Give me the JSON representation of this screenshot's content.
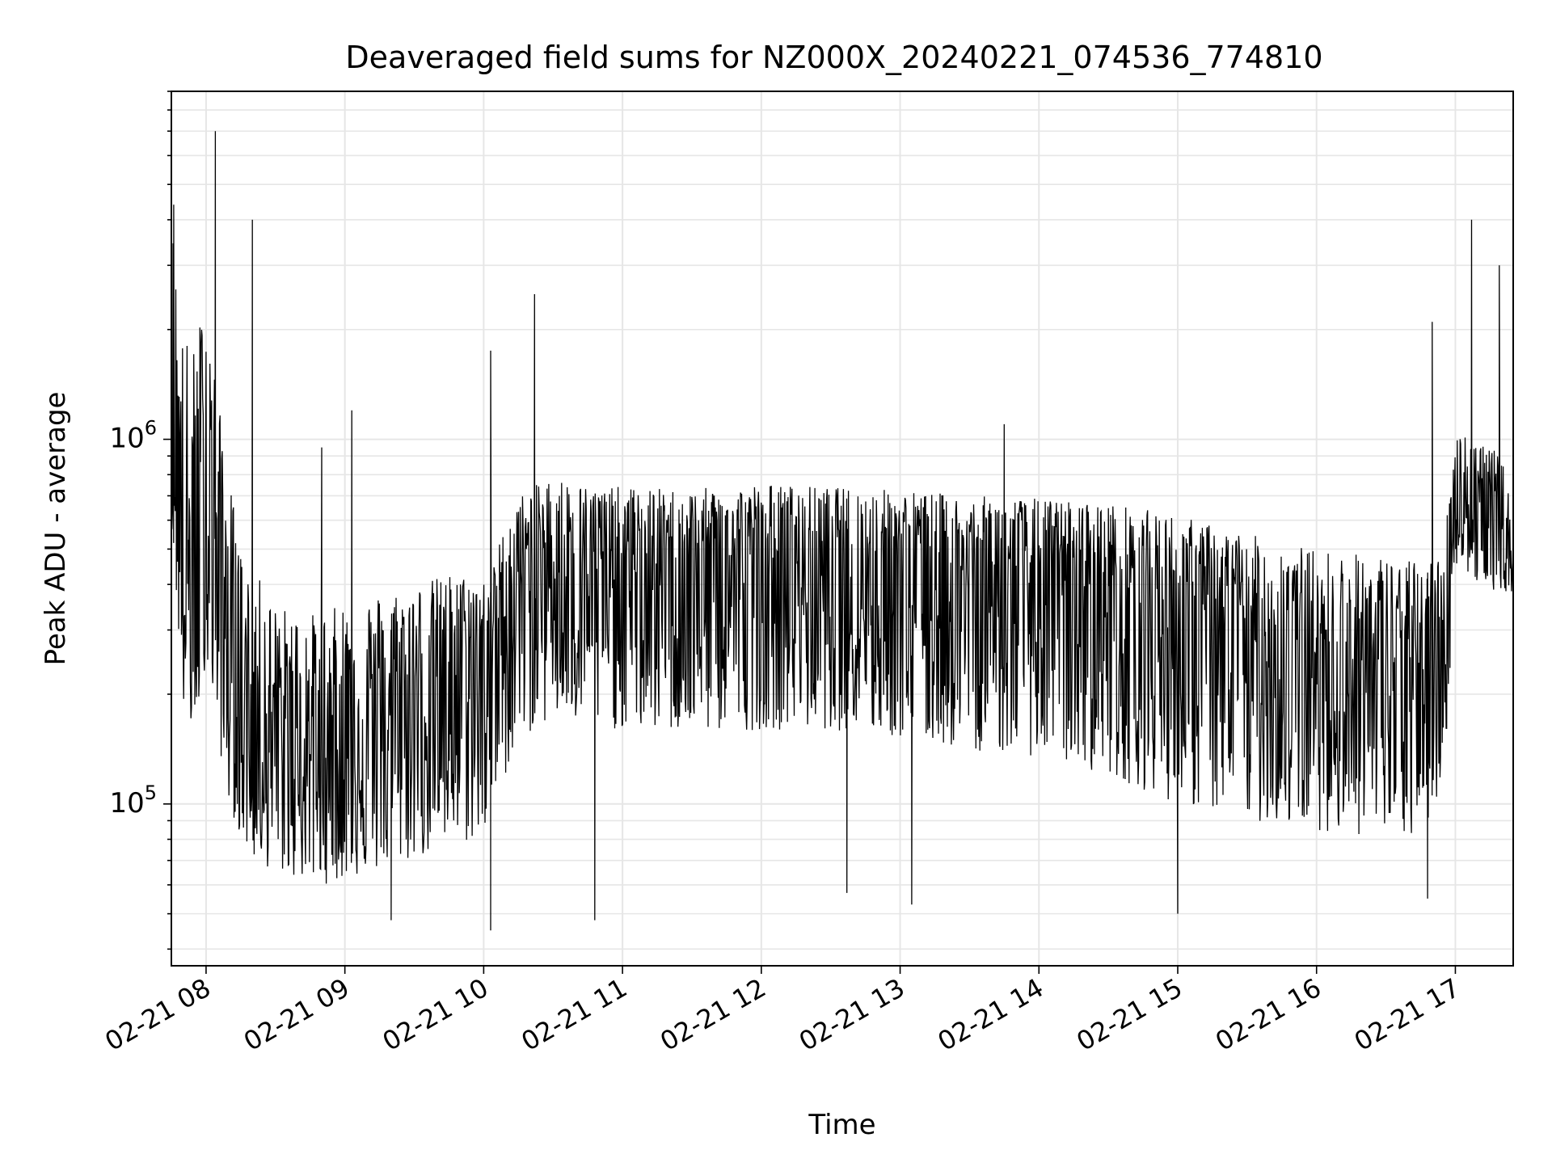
{
  "chart_data": {
    "type": "line",
    "title": "Deaveraged field sums for NZ000X_20240221_074536_774810",
    "xlabel": "Time",
    "ylabel": "Peak ADU - average",
    "yscale": "log",
    "ylim": [
      36000,
      9000000
    ],
    "xlim": [
      "2024-02-21 07:45",
      "2024-02-21 17:25"
    ],
    "x_ticks": [
      {
        "time": "2024-02-21 08:00",
        "label": "02-21 08"
      },
      {
        "time": "2024-02-21 09:00",
        "label": "02-21 09"
      },
      {
        "time": "2024-02-21 10:00",
        "label": "02-21 10"
      },
      {
        "time": "2024-02-21 11:00",
        "label": "02-21 11"
      },
      {
        "time": "2024-02-21 12:00",
        "label": "02-21 12"
      },
      {
        "time": "2024-02-21 13:00",
        "label": "02-21 13"
      },
      {
        "time": "2024-02-21 14:00",
        "label": "02-21 14"
      },
      {
        "time": "2024-02-21 15:00",
        "label": "02-21 15"
      },
      {
        "time": "2024-02-21 16:00",
        "label": "02-21 16"
      },
      {
        "time": "2024-02-21 17:00",
        "label": "02-21 17"
      }
    ],
    "y_ticks": [
      {
        "value": 100000,
        "base": "10",
        "exp": "5"
      },
      {
        "value": 1000000,
        "base": "10",
        "exp": "6"
      }
    ],
    "grid": true,
    "line_color": "#000000",
    "grid_color": "#e6e6e6",
    "series": [
      {
        "x": [
          "2024-02-21 07:45",
          "2024-02-21 07:50",
          "2024-02-21 07:55",
          "2024-02-21 08:00",
          "2024-02-21 08:05",
          "2024-02-21 08:10",
          "2024-02-21 08:15",
          "2024-02-21 08:20",
          "2024-02-21 08:30",
          "2024-02-21 08:40",
          "2024-02-21 08:50",
          "2024-02-21 09:00",
          "2024-02-21 09:15",
          "2024-02-21 09:30",
          "2024-02-21 09:45",
          "2024-02-21 10:00",
          "2024-02-21 10:15",
          "2024-02-21 10:30",
          "2024-02-21 10:45",
          "2024-02-21 11:00",
          "2024-02-21 11:30",
          "2024-02-21 12:00",
          "2024-02-21 12:30",
          "2024-02-21 13:00",
          "2024-02-21 13:30",
          "2024-02-21 14:00",
          "2024-02-21 14:30",
          "2024-02-21 15:00",
          "2024-02-21 15:30",
          "2024-02-21 16:00",
          "2024-02-21 16:30",
          "2024-02-21 16:45",
          "2024-02-21 16:55",
          "2024-02-21 17:00",
          "2024-02-21 17:10",
          "2024-02-21 17:20",
          "2024-02-21 17:25"
        ],
        "high": [
          4300000,
          2000000,
          1800000,
          2700000,
          1300000,
          800000,
          500000,
          450000,
          350000,
          340000,
          330000,
          360000,
          380000,
          400000,
          430000,
          420000,
          700000,
          800000,
          750000,
          740000,
          730000,
          760000,
          740000,
          730000,
          700000,
          690000,
          670000,
          620000,
          550000,
          500000,
          480000,
          460000,
          500000,
          1100000,
          1000000,
          900000,
          600000
        ],
        "center": [
          1200000,
          400000,
          300000,
          800000,
          450000,
          250000,
          180000,
          170000,
          150000,
          140000,
          140000,
          150000,
          170000,
          190000,
          220000,
          240000,
          420000,
          460000,
          440000,
          430000,
          430000,
          440000,
          430000,
          420000,
          400000,
          390000,
          370000,
          330000,
          280000,
          240000,
          220000,
          210000,
          300000,
          700000,
          620000,
          550000,
          480000
        ],
        "low": [
          600000,
          180000,
          150000,
          250000,
          150000,
          100000,
          80000,
          70000,
          65000,
          62000,
          60000,
          62000,
          65000,
          70000,
          75000,
          80000,
          150000,
          170000,
          160000,
          160000,
          155000,
          160000,
          160000,
          150000,
          140000,
          135000,
          120000,
          100000,
          90000,
          85000,
          80000,
          80000,
          110000,
          450000,
          400000,
          380000,
          380000
        ],
        "spikes": [
          {
            "time": "2024-02-21 07:46",
            "value": 4400000
          },
          {
            "time": "2024-02-21 08:04",
            "value": 7000000
          },
          {
            "time": "2024-02-21 08:20",
            "value": 4000000
          },
          {
            "time": "2024-02-21 08:50",
            "value": 950000
          },
          {
            "time": "2024-02-21 09:03",
            "value": 1200000
          },
          {
            "time": "2024-02-21 10:03",
            "value": 1750000
          },
          {
            "time": "2024-02-21 10:22",
            "value": 2500000
          },
          {
            "time": "2024-02-21 13:45",
            "value": 1100000
          },
          {
            "time": "2024-02-21 16:50",
            "value": 2100000
          },
          {
            "time": "2024-02-21 17:07",
            "value": 4000000
          },
          {
            "time": "2024-02-21 17:19",
            "value": 3000000
          },
          {
            "time": "2024-02-21 10:03",
            "value": 45000
          },
          {
            "time": "2024-02-21 15:00",
            "value": 50000
          },
          {
            "time": "2024-02-21 09:20",
            "value": 48000
          },
          {
            "time": "2024-02-21 16:48",
            "value": 55000
          },
          {
            "time": "2024-02-21 12:37",
            "value": 57000
          },
          {
            "time": "2024-02-21 13:05",
            "value": 53000
          },
          {
            "time": "2024-02-21 10:48",
            "value": 48000
          }
        ]
      }
    ]
  }
}
